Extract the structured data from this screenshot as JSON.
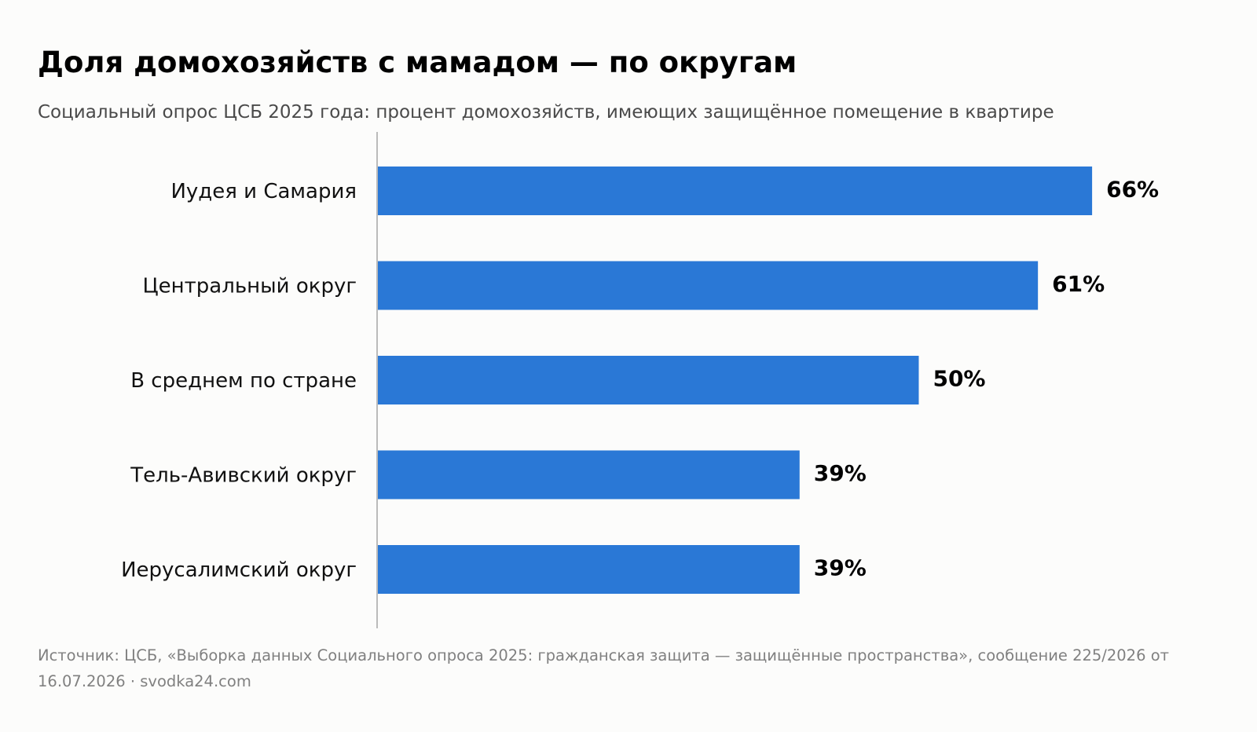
{
  "chart_data": {
    "type": "bar",
    "orientation": "horizontal",
    "title": "Доля домохозяйств с мамадом — по округам",
    "subtitle": "Социальный опрос ЦСБ 2025 года: процент домохозяйств, имеющих защищённое помещение в квартире",
    "categories": [
      "Иудея и Самария",
      "Центральный округ",
      "В среднем по стране",
      "Тель-Авивский округ",
      "Иерусалимский округ"
    ],
    "values": [
      66,
      61,
      50,
      39,
      39
    ],
    "value_labels": [
      "66%",
      "61%",
      "50%",
      "39%",
      "39%"
    ],
    "xlim": [
      0,
      76
    ],
    "grid": false,
    "legend": "none",
    "bar_color": "#2a78d6",
    "axis_color": "#bbbbbb",
    "source": "Источник: ЦСБ, «Выборка данных Социального опроса 2025: гражданская защита — защищённые пространства», сообщение 225/2026 от 16.07.2026 · svodka24.com"
  }
}
